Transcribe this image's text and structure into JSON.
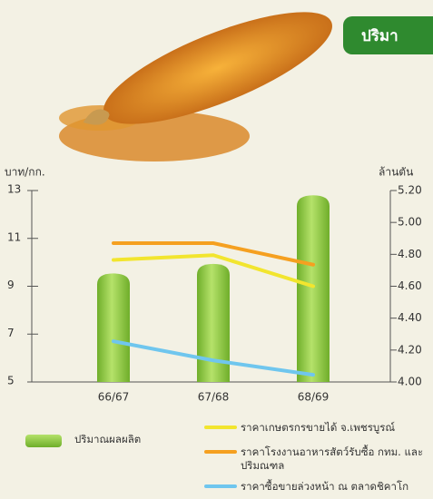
{
  "header": {
    "tag": "ปริมา"
  },
  "chart_data": {
    "type": "combo",
    "y_label": "บาท/กก.",
    "y2_label": "ล้านตัน",
    "categories": [
      "66/67",
      "67/68",
      "68/69"
    ],
    "ylim": [
      5,
      13
    ],
    "yticks": [
      5,
      7,
      9,
      11,
      13
    ],
    "y2lim": [
      4,
      5.2
    ],
    "y2ticks": [
      {
        "value": 4,
        "label": "4.00"
      },
      {
        "value": 4.2,
        "label": "4.20"
      },
      {
        "value": 4.4,
        "label": "4.40"
      },
      {
        "value": 4.6,
        "label": "4.60"
      },
      {
        "value": 4.8,
        "label": "4.80"
      },
      {
        "value": 5,
        "label": "5.00"
      },
      {
        "value": 5.2,
        "label": "5.20"
      }
    ],
    "series": [
      {
        "name": "ปริมาณผลผลิต",
        "type": "bar",
        "axis": "y2",
        "color": "#8cc63f",
        "values": [
          4.68,
          4.74,
          5.17
        ]
      },
      {
        "name": "ราคาเกษตรกรขายได้ จ.เพชรบูรณ์",
        "type": "line",
        "color": "#f2e52e",
        "values": [
          10.1,
          10.3,
          9.0
        ]
      },
      {
        "name": "ราคาโรงงานอาหารสัตว์รับซื้อ กทม. และปริมณฑล",
        "type": "line",
        "color": "#f5a020",
        "values": [
          10.8,
          10.8,
          9.9
        ]
      },
      {
        "name": "ราคาซื้อขายล่วงหน้า ณ ตลาดชิคาโก",
        "type": "line",
        "color": "#6fc6ee",
        "values": [
          6.7,
          5.9,
          5.3
        ]
      }
    ]
  }
}
